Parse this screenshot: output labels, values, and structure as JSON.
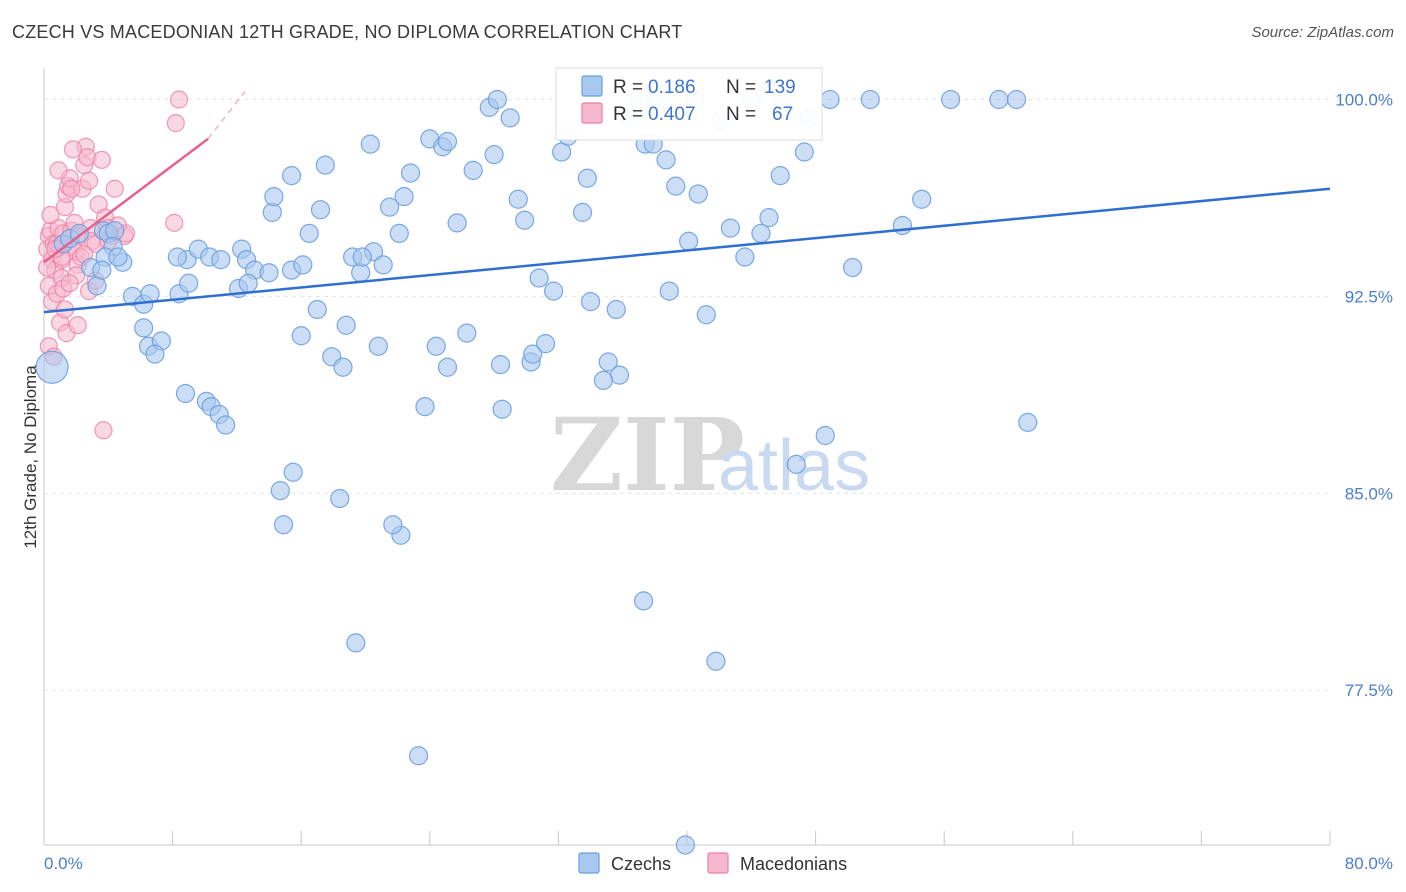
{
  "header": {
    "title": "CZECH VS MACEDONIAN 12TH GRADE, NO DIPLOMA CORRELATION CHART",
    "source": "Source: ZipAtlas.com"
  },
  "watermark": {
    "zip": "ZIP",
    "atlas": "atlas"
  },
  "legend_box": {
    "czechs": {
      "r_label": "R =",
      "r_value": "0.186",
      "n_label": "N =",
      "n_value": "139"
    },
    "macedonians": {
      "r_label": "R =",
      "r_value": "0.407",
      "n_label": "N =",
      "n_value": "67"
    }
  },
  "bottom_legend": {
    "czechs": "Czechs",
    "macedonians": "Macedonians"
  },
  "colors": {
    "blue_fill": "#a9c8ef",
    "blue_stroke": "#6b9fe0",
    "blue_line": "#2f6fcf",
    "pink_fill": "#f5b8cc",
    "pink_stroke": "#ee7fa3",
    "pink_line": "#e8608f",
    "tick_text": "#4a7fd0"
  },
  "chart_data": {
    "type": "scatter",
    "title": "CZECH VS MACEDONIAN 12TH GRADE, NO DIPLOMA CORRELATION CHART",
    "xlabel": "",
    "ylabel": "12th Grade, No Diploma",
    "xlim": [
      0,
      80
    ],
    "ylim": [
      71.6,
      101.2
    ],
    "x_tick_labels": [
      "0.0%",
      "80.0%"
    ],
    "y_ticks": [
      77.5,
      85.0,
      92.5,
      100.0
    ],
    "y_tick_labels": [
      "77.5%",
      "85.0%",
      "92.5%",
      "100.0%"
    ],
    "series": [
      {
        "name": "Czechs",
        "trend": {
          "x": [
            0,
            80
          ],
          "y": [
            91.9,
            96.6
          ]
        },
        "points": [
          [
            0.5,
            89.8
          ],
          [
            1.2,
            94.5
          ],
          [
            1.6,
            94.7
          ],
          [
            2.2,
            94.9
          ],
          [
            2.9,
            93.6
          ],
          [
            3.3,
            92.9
          ],
          [
            3.7,
            95.0
          ],
          [
            4.0,
            94.9
          ],
          [
            4.4,
            95.0
          ],
          [
            4.3,
            94.4
          ],
          [
            4.9,
            93.8
          ],
          [
            3.8,
            94.0
          ],
          [
            4.6,
            94.0
          ],
          [
            3.6,
            93.5
          ],
          [
            5.5,
            92.5
          ],
          [
            6.2,
            92.2
          ],
          [
            6.6,
            92.6
          ],
          [
            6.2,
            91.3
          ],
          [
            6.5,
            90.6
          ],
          [
            7.3,
            90.8
          ],
          [
            6.9,
            90.3
          ],
          [
            8.4,
            92.6
          ],
          [
            8.9,
            93.9
          ],
          [
            8.3,
            94.0
          ],
          [
            9.0,
            93.0
          ],
          [
            9.6,
            94.3
          ],
          [
            10.3,
            94.0
          ],
          [
            11.0,
            93.9
          ],
          [
            12.1,
            92.8
          ],
          [
            12.3,
            94.3
          ],
          [
            12.6,
            93.9
          ],
          [
            13.1,
            93.5
          ],
          [
            12.7,
            93.0
          ],
          [
            14.0,
            93.4
          ],
          [
            14.2,
            95.7
          ],
          [
            14.3,
            96.3
          ],
          [
            15.4,
            93.5
          ],
          [
            15.4,
            97.1
          ],
          [
            16.1,
            93.7
          ],
          [
            16.5,
            94.9
          ],
          [
            17.2,
            95.8
          ],
          [
            17.0,
            92.0
          ],
          [
            16.0,
            91.0
          ],
          [
            17.5,
            97.5
          ],
          [
            17.9,
            90.2
          ],
          [
            18.6,
            89.8
          ],
          [
            18.8,
            91.4
          ],
          [
            19.2,
            94.0
          ],
          [
            19.7,
            93.4
          ],
          [
            20.5,
            94.2
          ],
          [
            20.3,
            98.3
          ],
          [
            20.8,
            90.6
          ],
          [
            21.1,
            93.7
          ],
          [
            21.5,
            95.9
          ],
          [
            22.4,
            96.3
          ],
          [
            22.1,
            94.9
          ],
          [
            22.8,
            97.2
          ],
          [
            23.7,
            88.3
          ],
          [
            24.0,
            98.5
          ],
          [
            24.4,
            90.6
          ],
          [
            24.8,
            98.2
          ],
          [
            25.1,
            98.4
          ],
          [
            25.1,
            89.8
          ],
          [
            25.7,
            95.3
          ],
          [
            26.3,
            91.1
          ],
          [
            26.7,
            97.3
          ],
          [
            27.7,
            99.7
          ],
          [
            28.0,
            97.9
          ],
          [
            28.2,
            100.0
          ],
          [
            28.5,
            88.2
          ],
          [
            28.4,
            89.9
          ],
          [
            29.0,
            99.3
          ],
          [
            29.5,
            96.2
          ],
          [
            29.9,
            95.4
          ],
          [
            30.3,
            90.0
          ],
          [
            30.8,
            93.2
          ],
          [
            31.2,
            90.7
          ],
          [
            31.7,
            92.7
          ],
          [
            32.2,
            98.0
          ],
          [
            32.6,
            98.6
          ],
          [
            33.5,
            95.7
          ],
          [
            33.8,
            97.0
          ],
          [
            34.0,
            92.3
          ],
          [
            35.1,
            90.0
          ],
          [
            35.6,
            92.0
          ],
          [
            35.8,
            89.5
          ],
          [
            36.4,
            99.3
          ],
          [
            37.0,
            100.0
          ],
          [
            37.4,
            98.3
          ],
          [
            37.9,
            98.3
          ],
          [
            38.2,
            100.0
          ],
          [
            38.7,
            97.7
          ],
          [
            38.9,
            92.7
          ],
          [
            39.3,
            96.7
          ],
          [
            40.5,
            100.0
          ],
          [
            40.1,
            94.6
          ],
          [
            40.7,
            96.4
          ],
          [
            41.2,
            91.8
          ],
          [
            42.1,
            99.2
          ],
          [
            42.7,
            95.1
          ],
          [
            43.6,
            94.0
          ],
          [
            44.0,
            100.0
          ],
          [
            44.6,
            94.9
          ],
          [
            45.1,
            95.5
          ],
          [
            45.8,
            97.1
          ],
          [
            45.9,
            100.0
          ],
          [
            47.3,
            98.0
          ],
          [
            47.6,
            99.3
          ],
          [
            48.9,
            100.0
          ],
          [
            50.3,
            93.6
          ],
          [
            51.4,
            100.0
          ],
          [
            53.4,
            95.2
          ],
          [
            54.6,
            96.2
          ],
          [
            56.4,
            100.0
          ],
          [
            59.4,
            100.0
          ],
          [
            60.5,
            100.0
          ],
          [
            61.2,
            87.7
          ],
          [
            46.8,
            86.1
          ],
          [
            48.6,
            87.2
          ],
          [
            37.3,
            80.9
          ],
          [
            41.8,
            78.6
          ],
          [
            39.9,
            71.6
          ],
          [
            23.3,
            75.0
          ],
          [
            19.4,
            79.3
          ],
          [
            22.2,
            83.4
          ],
          [
            21.7,
            83.8
          ],
          [
            14.9,
            83.8
          ],
          [
            14.7,
            85.1
          ],
          [
            15.5,
            85.8
          ],
          [
            18.4,
            84.8
          ],
          [
            8.8,
            88.8
          ],
          [
            10.1,
            88.5
          ],
          [
            10.4,
            88.3
          ],
          [
            10.9,
            88.0
          ],
          [
            11.3,
            87.6
          ],
          [
            34.8,
            89.3
          ],
          [
            30.4,
            90.3
          ],
          [
            19.8,
            94.0
          ]
        ]
      },
      {
        "name": "Macedonians",
        "trend": {
          "x": [
            0,
            10.2
          ],
          "y": [
            93.8,
            98.5
          ]
        },
        "trend_dashed": {
          "x": [
            10.2,
            12.5
          ],
          "y": [
            98.5,
            100.3
          ]
        },
        "points": [
          [
            0.2,
            94.3
          ],
          [
            0.3,
            94.8
          ],
          [
            0.4,
            95.0
          ],
          [
            0.5,
            93.9
          ],
          [
            0.6,
            94.5
          ],
          [
            0.7,
            93.5
          ],
          [
            0.8,
            94.5
          ],
          [
            0.9,
            95.1
          ],
          [
            1.0,
            94.4
          ],
          [
            1.1,
            93.9
          ],
          [
            1.2,
            94.9
          ],
          [
            1.3,
            95.9
          ],
          [
            1.4,
            96.4
          ],
          [
            1.5,
            96.7
          ],
          [
            1.6,
            97.0
          ],
          [
            1.7,
            95.0
          ],
          [
            1.8,
            94.4
          ],
          [
            1.9,
            95.3
          ],
          [
            2.0,
            94.2
          ],
          [
            2.1,
            93.7
          ],
          [
            2.2,
            94.8
          ],
          [
            2.3,
            94.0
          ],
          [
            2.4,
            96.6
          ],
          [
            2.5,
            97.5
          ],
          [
            2.6,
            98.2
          ],
          [
            2.7,
            97.8
          ],
          [
            2.8,
            96.9
          ],
          [
            2.9,
            95.1
          ],
          [
            3.0,
            94.6
          ],
          [
            3.2,
            94.5
          ],
          [
            3.4,
            96.0
          ],
          [
            3.6,
            97.7
          ],
          [
            3.8,
            95.5
          ],
          [
            4.0,
            95.1
          ],
          [
            4.2,
            94.8
          ],
          [
            4.4,
            96.6
          ],
          [
            4.6,
            95.2
          ],
          [
            0.2,
            93.6
          ],
          [
            0.3,
            92.9
          ],
          [
            0.5,
            92.3
          ],
          [
            0.8,
            92.6
          ],
          [
            1.0,
            91.5
          ],
          [
            1.4,
            91.1
          ],
          [
            2.1,
            91.4
          ],
          [
            0.3,
            90.6
          ],
          [
            0.6,
            90.2
          ],
          [
            1.3,
            92.0
          ],
          [
            1.1,
            93.2
          ],
          [
            0.4,
            95.6
          ],
          [
            0.9,
            97.3
          ],
          [
            1.8,
            98.1
          ],
          [
            1.2,
            92.8
          ],
          [
            2.8,
            92.7
          ],
          [
            2.0,
            93.3
          ],
          [
            1.1,
            94.0
          ],
          [
            0.7,
            94.3
          ],
          [
            3.7,
            87.4
          ],
          [
            5.0,
            94.8
          ],
          [
            5.1,
            94.9
          ],
          [
            8.1,
            95.3
          ],
          [
            8.2,
            99.1
          ],
          [
            8.4,
            100.0
          ],
          [
            3.2,
            93.1
          ],
          [
            4.0,
            94.6
          ],
          [
            1.6,
            93.0
          ],
          [
            2.5,
            94.1
          ],
          [
            1.7,
            96.6
          ]
        ]
      }
    ]
  }
}
